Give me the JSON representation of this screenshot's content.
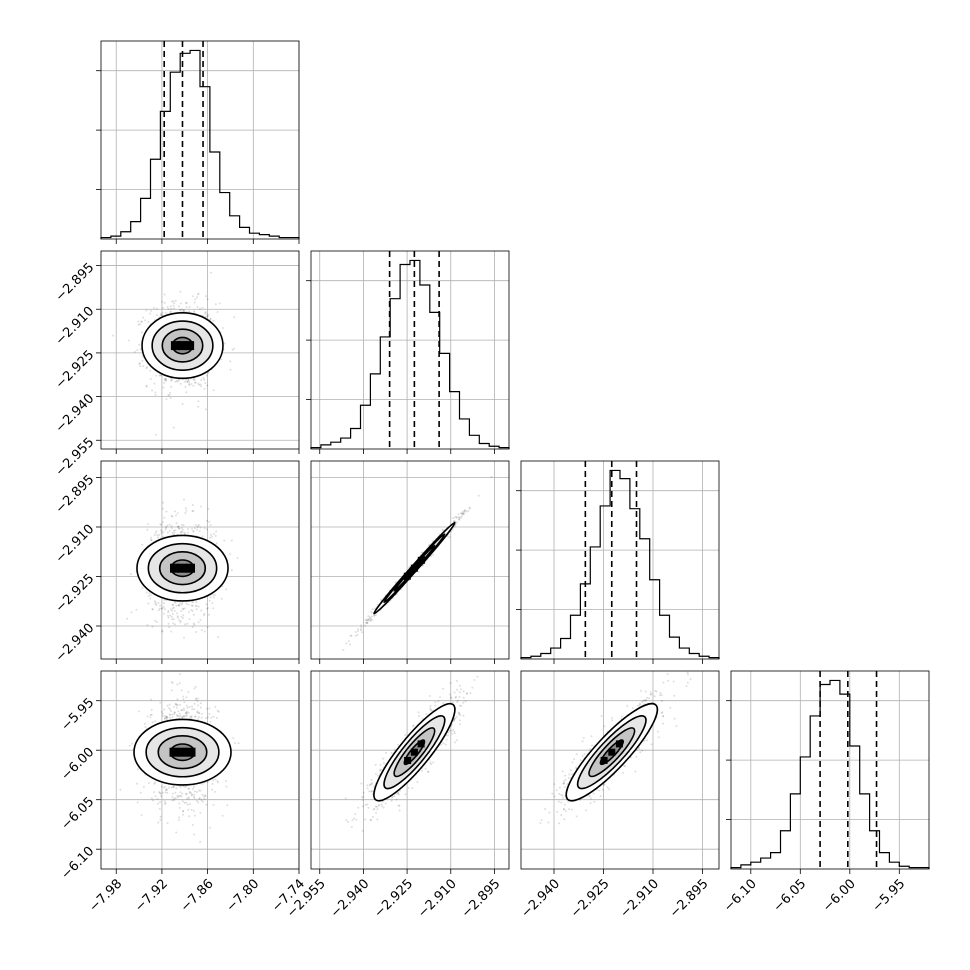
{
  "chart_data": {
    "type": "corner",
    "parameters": [
      {
        "range": [
          -8.0,
          -7.74
        ],
        "ticks": [
          -7.98,
          -7.92,
          -7.86,
          -7.8,
          -7.74
        ],
        "tick_labels": [
          "−7.98",
          "−7.92",
          "−7.86",
          "−7.80",
          "−7.74"
        ],
        "quantiles": [
          -7.917,
          -7.893,
          -7.866
        ],
        "hist": [
          1,
          2,
          5,
          12,
          28,
          55,
          88,
          115,
          128,
          130,
          105,
          60,
          32,
          16,
          8,
          4,
          3,
          2,
          1,
          1
        ]
      },
      {
        "range": [
          -2.958,
          -2.89
        ],
        "ticks": [
          -2.955,
          -2.94,
          -2.925,
          -2.91,
          -2.895
        ],
        "tick_labels": [
          "−2.955",
          "−2.940",
          "−2.925",
          "−2.910",
          "−2.895"
        ],
        "quantiles": [
          -2.931,
          -2.9225,
          -2.914
        ],
        "hist": [
          1,
          3,
          5,
          8,
          15,
          32,
          55,
          82,
          110,
          135,
          138,
          120,
          100,
          70,
          42,
          22,
          10,
          4,
          2,
          1
        ]
      },
      {
        "range": [
          -2.95,
          -2.89
        ],
        "ticks": [
          -2.94,
          -2.925,
          -2.91,
          -2.895
        ],
        "tick_labels": [
          "−2.940",
          "−2.925",
          "−2.910",
          "−2.895"
        ],
        "quantiles": [
          -2.9305,
          -2.9225,
          -2.915
        ],
        "hist": [
          1,
          2,
          4,
          8,
          15,
          32,
          55,
          82,
          112,
          138,
          132,
          110,
          88,
          58,
          32,
          16,
          8,
          4,
          2,
          1
        ]
      },
      {
        "range": [
          -6.12,
          -5.92
        ],
        "ticks": [
          -6.1,
          -6.05,
          -6.0,
          -5.95
        ],
        "tick_labels": [
          "−6.10",
          "−6.05",
          "−6.00",
          "−5.95"
        ],
        "quantiles": [
          -6.03,
          -6.002,
          -5.973
        ],
        "hist": [
          1,
          3,
          5,
          8,
          12,
          28,
          55,
          82,
          112,
          135,
          138,
          128,
          90,
          55,
          28,
          12,
          5,
          2,
          1,
          1
        ]
      }
    ],
    "pairs": [
      {
        "x": 0,
        "y": 1,
        "rho": 0.0
      },
      {
        "x": 0,
        "y": 2,
        "rho": 0.0
      },
      {
        "x": 1,
        "y": 2,
        "rho": 0.995
      },
      {
        "x": 0,
        "y": 3,
        "rho": 0.0
      },
      {
        "x": 1,
        "y": 3,
        "rho": 0.88
      },
      {
        "x": 2,
        "y": 3,
        "rho": 0.88
      }
    ],
    "sigma": [
      0.0215,
      0.00695,
      0.0069,
      0.0245
    ],
    "grid": true,
    "contour_levels_sigma": [
      0.5,
      1.0,
      1.5,
      2.0
    ]
  }
}
